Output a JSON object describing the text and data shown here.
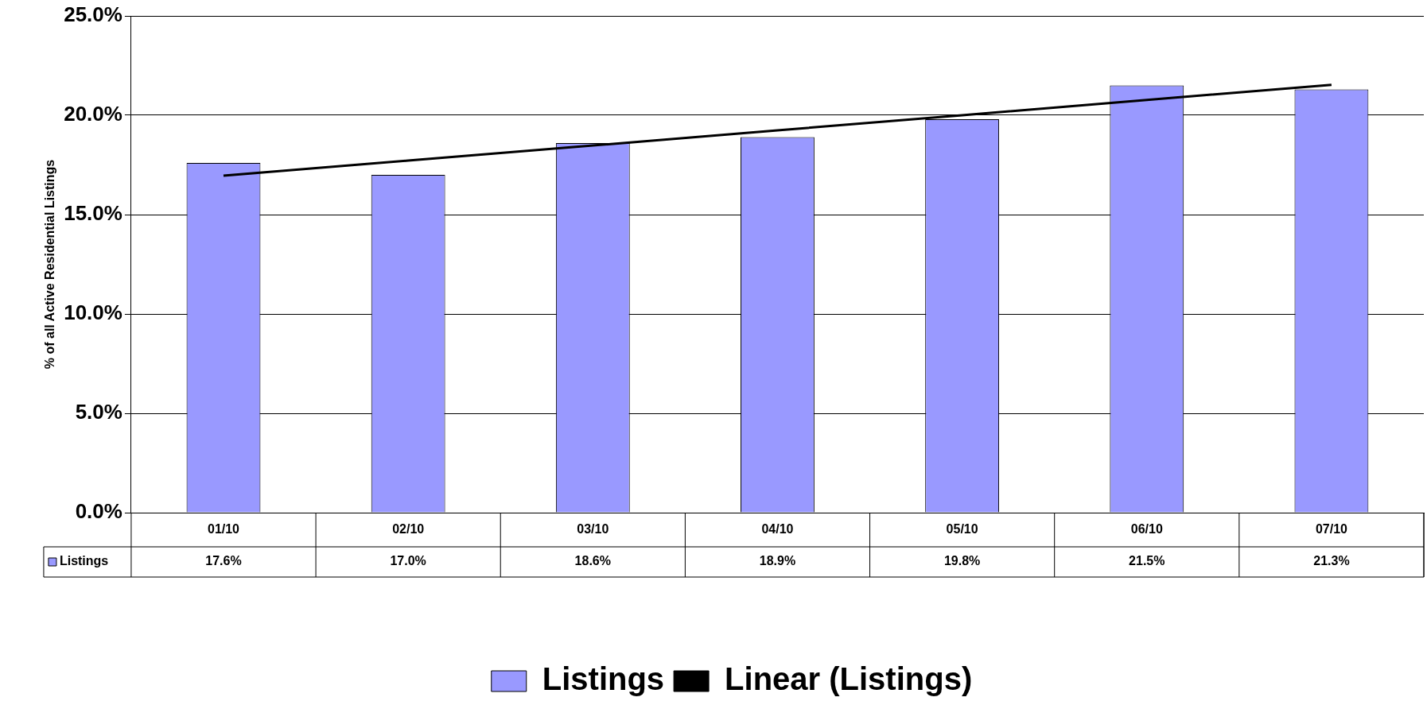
{
  "chart_data": {
    "type": "bar",
    "ylabel": "% of all Active Residential Listings",
    "categories": [
      "01/10",
      "02/10",
      "03/10",
      "04/10",
      "05/10",
      "06/10",
      "07/10"
    ],
    "series": [
      {
        "name": "Listings",
        "color": "#9999ff",
        "values": [
          17.6,
          17.0,
          18.6,
          18.9,
          19.8,
          21.5,
          21.3
        ]
      },
      {
        "name": "Linear (Listings)",
        "type": "line",
        "color": "#000000",
        "marker": "none",
        "line_style": "solid",
        "values": [
          16.96,
          17.72,
          18.48,
          19.24,
          20.0,
          20.77,
          21.53
        ]
      }
    ],
    "ylim": [
      0,
      25
    ],
    "yticks": [
      {
        "value": 0,
        "label": "0.0%"
      },
      {
        "value": 5,
        "label": "5.0%"
      },
      {
        "value": 10,
        "label": "10.0%"
      },
      {
        "value": 15,
        "label": "15.0%"
      },
      {
        "value": 20,
        "label": "20.0%"
      },
      {
        "value": 25,
        "label": "25.0%"
      }
    ],
    "value_labels": [
      "17.6%",
      "17.0%",
      "18.6%",
      "18.9%",
      "19.8%",
      "21.5%",
      "21.3%"
    ],
    "grid": "y",
    "legend": "bottom"
  }
}
